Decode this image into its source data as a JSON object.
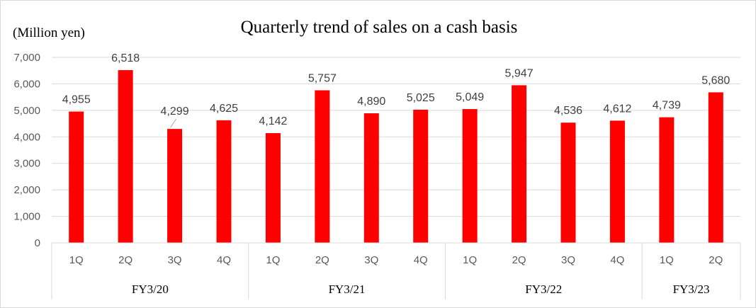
{
  "chart_data": {
    "type": "bar",
    "title": "Quarterly trend of sales on a cash basis",
    "unit_label": "(Million yen)",
    "ylim": [
      0,
      7000
    ],
    "yticks": [
      0,
      1000,
      2000,
      3000,
      4000,
      5000,
      6000,
      7000
    ],
    "ytick_labels": [
      "0",
      "1,000",
      "2,000",
      "3,000",
      "4,000",
      "5,000",
      "6,000",
      "7,000"
    ],
    "grid": true,
    "bar_color": "#ff0000",
    "categories": [
      "1Q",
      "2Q",
      "3Q",
      "4Q",
      "1Q",
      "2Q",
      "3Q",
      "4Q",
      "1Q",
      "2Q",
      "3Q",
      "4Q",
      "1Q",
      "2Q"
    ],
    "values": [
      4955,
      6518,
      4299,
      4625,
      4142,
      5757,
      4890,
      5025,
      5049,
      5947,
      4536,
      4612,
      4739,
      5680
    ],
    "value_labels": [
      "4,955",
      "6,518",
      "4,299",
      "4,625",
      "4,142",
      "5,757",
      "4,890",
      "5,025",
      "5,049",
      "5,947",
      "4,536",
      "4,612",
      "4,739",
      "5,680"
    ],
    "groups": [
      {
        "label": "FY3/20",
        "count": 4
      },
      {
        "label": "FY3/21",
        "count": 4
      },
      {
        "label": "FY3/22",
        "count": 4
      },
      {
        "label": "FY3/23",
        "count": 2
      }
    ]
  }
}
